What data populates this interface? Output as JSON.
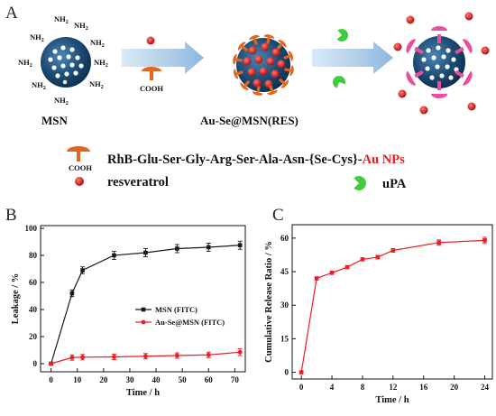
{
  "panel_a": {
    "letter": "A",
    "amine": "NH",
    "amine_sub": "2",
    "cooh": "COOH",
    "msn_label": "MSN",
    "res_label": "Au-Se@MSN(RES)",
    "legend_peptide_prefix": "RhB-Glu-Ser-Gly-Arg-Ser-Ala-Asn-{Se-Cys}-",
    "legend_peptide_suffix": "Au NPs",
    "legend_resveratrol": "resveratrol",
    "legend_upa": "uPA",
    "colors": {
      "peptide": "#e3661e",
      "resveratrol": "#d91f1f",
      "upa": "#3fcc3f",
      "released": "#ea4f9e",
      "core": "#1d4c74",
      "arrow": "#a8c9e6"
    }
  },
  "chart_data": [
    {
      "panel": "B",
      "type": "line",
      "xlabel": "Time / h",
      "ylabel": "Leakage / %",
      "xlim": [
        -4,
        74
      ],
      "ylim": [
        -6,
        102
      ],
      "xticks": [
        0,
        10,
        20,
        30,
        40,
        50,
        60,
        70
      ],
      "yticks": [
        0,
        20,
        40,
        60,
        80,
        100
      ],
      "legend_position": "center-right",
      "series": [
        {
          "name": "MSN (FITC)",
          "color": "#1a1a1a",
          "marker": "square",
          "x": [
            0,
            8,
            12,
            24,
            36,
            48,
            60,
            72
          ],
          "y": [
            0,
            52,
            69,
            80,
            82,
            85,
            86,
            87.5
          ],
          "err": [
            0.5,
            2.5,
            2.5,
            3,
            3,
            3,
            3,
            3
          ]
        },
        {
          "name": "Au-Se@MSN (FITC)",
          "color": "#ee1c24",
          "marker": "circle",
          "x": [
            0,
            8,
            12,
            24,
            36,
            48,
            60,
            72
          ],
          "y": [
            0,
            4.5,
            4.8,
            5,
            5.5,
            6,
            6.5,
            8.5
          ],
          "err": [
            0.5,
            2,
            2,
            2,
            2,
            2,
            2,
            2.5
          ]
        }
      ]
    },
    {
      "panel": "C",
      "type": "line",
      "xlabel": "Time / h",
      "ylabel": "Cumulative Release Ratio / %",
      "xlim": [
        -1.2,
        25
      ],
      "ylim": [
        -3,
        66
      ],
      "xticks": [
        0,
        4,
        8,
        12,
        16,
        20,
        24
      ],
      "yticks": [
        0,
        15,
        30,
        45,
        60
      ],
      "series": [
        {
          "color": "#ee1c24",
          "marker": "square",
          "x": [
            0,
            2,
            4,
            6,
            8,
            10,
            12,
            18,
            24
          ],
          "y": [
            0,
            42,
            44.5,
            47,
            50.5,
            51.5,
            54.5,
            58,
            59
          ],
          "err": [
            0,
            0.6,
            0.6,
            0.6,
            0.6,
            0.8,
            0.8,
            1.2,
            1.4
          ]
        }
      ]
    }
  ]
}
